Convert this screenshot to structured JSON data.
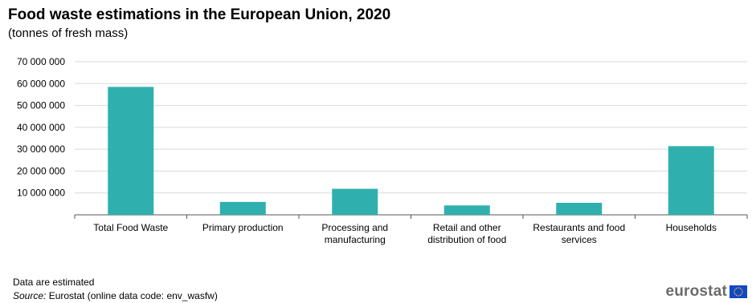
{
  "title": "Food waste estimations in the European Union, 2020",
  "subtitle": "(tonnes of fresh mass)",
  "note": "Data are estimated",
  "source": {
    "label": "Source:",
    "text": " Eurostat (online data code: env_wasfw)"
  },
  "logo": {
    "text": "eurostat",
    "flag_color": "#0e47cb",
    "star_color": "#ffcc00"
  },
  "colors": {
    "bar": "#2fb0ae",
    "grid": "#d9d9d9",
    "axis": "#555555"
  },
  "chart_data": {
    "type": "bar",
    "categories": [
      [
        "Total Food Waste"
      ],
      [
        "Primary production"
      ],
      [
        "Processing and",
        "manufacturing"
      ],
      [
        "Retail and other",
        "distribution of food"
      ],
      [
        "Restaurants and food",
        "services"
      ],
      [
        "Households"
      ]
    ],
    "values": [
      58500000,
      5900000,
      11900000,
      4300000,
      5500000,
      31400000
    ],
    "yticks": [
      "10 000 000",
      "20 000 000",
      "30 000 000",
      "40 000 000",
      "50 000 000",
      "60 000 000",
      "70 000 000"
    ],
    "ylim": [
      0,
      70000000
    ],
    "grid": true,
    "legend": false
  }
}
